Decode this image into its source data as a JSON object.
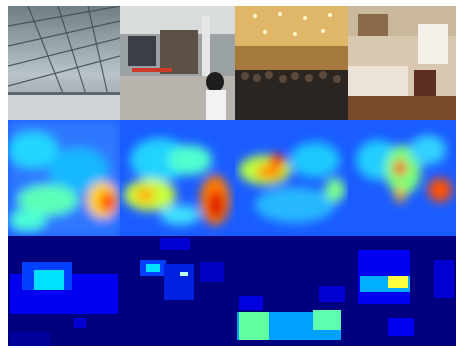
{
  "figure": {
    "layout": {
      "rows": 3,
      "columns": 4
    },
    "rows": [
      {
        "row_type": "photograph",
        "scenes": [
          "airport-terminal",
          "station-concourse",
          "crowded-hall",
          "living-room"
        ]
      },
      {
        "row_type": "heatmap",
        "colormap": "jet"
      },
      {
        "row_type": "box-mask",
        "colormap": "jet"
      }
    ],
    "colors": {
      "jet_dark": "#00007f",
      "jet_blue": "#0000ff",
      "jet_cyan": "#00ffff",
      "jet_yellow": "#ffff00",
      "jet_red": "#ff0000",
      "divider": "#c8c8c8"
    }
  }
}
